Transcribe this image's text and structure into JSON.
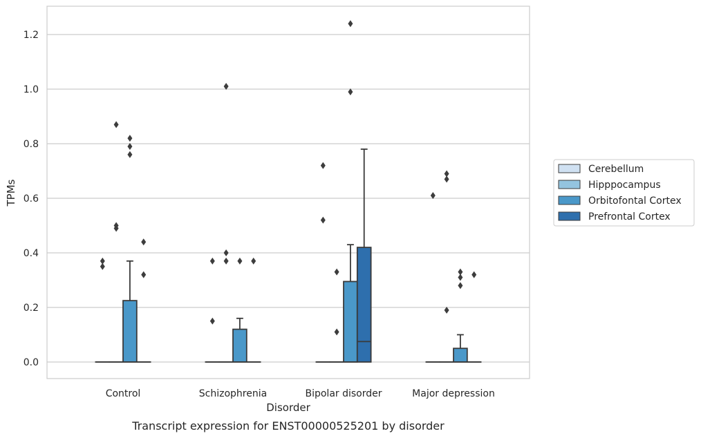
{
  "chart_data": {
    "type": "box",
    "xlabel": "Disorder",
    "ylabel": "TPMs",
    "caption": "Transcript expression for ENST00000525201 by disorder",
    "ylim": [
      -0.06,
      1.31
    ],
    "yticks": [
      "0.0",
      "0.2",
      "0.4",
      "0.6",
      "0.8",
      "1.0",
      "1.2"
    ],
    "ytick_values": [
      0.0,
      0.2,
      0.4,
      0.6,
      0.8,
      1.0,
      1.2
    ],
    "grid": "horizontal",
    "legend_position": "right",
    "categories": [
      "Control",
      "Schizophrenia",
      "Bipolar disorder",
      "Major depression"
    ],
    "series": [
      {
        "name": "Cerebellum",
        "color": "#d0e1f2",
        "boxes": [
          {
            "q1": 0,
            "median": 0,
            "q3": 0,
            "whisker_low": 0,
            "whisker_high": 0,
            "outliers": [
              0.35,
              0.37
            ]
          },
          {
            "q1": 0,
            "median": 0,
            "q3": 0,
            "whisker_low": 0,
            "whisker_high": 0,
            "outliers": [
              0.15,
              0.37
            ]
          },
          {
            "q1": 0,
            "median": 0,
            "q3": 0,
            "whisker_low": 0,
            "whisker_high": 0,
            "outliers": [
              0.52,
              0.72
            ]
          },
          {
            "q1": 0,
            "median": 0,
            "q3": 0,
            "whisker_low": 0,
            "whisker_high": 0,
            "outliers": [
              0.61
            ]
          }
        ]
      },
      {
        "name": "Hipppocampus",
        "color": "#94c4df",
        "boxes": [
          {
            "q1": 0,
            "median": 0,
            "q3": 0,
            "whisker_low": 0,
            "whisker_high": 0,
            "outliers": [
              0.49,
              0.5,
              0.87
            ]
          },
          {
            "q1": 0,
            "median": 0,
            "q3": 0,
            "whisker_low": 0,
            "whisker_high": 0,
            "outliers": [
              0.37,
              0.4,
              1.01
            ]
          },
          {
            "q1": 0,
            "median": 0,
            "q3": 0,
            "whisker_low": 0,
            "whisker_high": 0,
            "outliers": [
              0.11,
              0.33
            ]
          },
          {
            "q1": 0,
            "median": 0,
            "q3": 0,
            "whisker_low": 0,
            "whisker_high": 0,
            "outliers": [
              0.19,
              0.67,
              0.69
            ]
          }
        ]
      },
      {
        "name": "Orbitofontal Cortex",
        "color": "#4a98c9",
        "boxes": [
          {
            "q1": 0,
            "median": 0,
            "q3": 0.225,
            "whisker_low": 0,
            "whisker_high": 0.37,
            "outliers": [
              0.76,
              0.79,
              0.82
            ]
          },
          {
            "q1": 0,
            "median": 0,
            "q3": 0.12,
            "whisker_low": 0,
            "whisker_high": 0.16,
            "outliers": [
              0.37
            ]
          },
          {
            "q1": 0,
            "median": 0,
            "q3": 0.295,
            "whisker_low": 0,
            "whisker_high": 0.43,
            "outliers": [
              0.99,
              1.24
            ]
          },
          {
            "q1": 0,
            "median": 0,
            "q3": 0.05,
            "whisker_low": 0,
            "whisker_high": 0.1,
            "outliers": [
              0.28,
              0.31,
              0.33
            ]
          }
        ]
      },
      {
        "name": "Prefrontal Cortex",
        "color": "#2e6fad",
        "boxes": [
          {
            "q1": 0,
            "median": 0,
            "q3": 0,
            "whisker_low": 0,
            "whisker_high": 0,
            "outliers": [
              0.32,
              0.44
            ]
          },
          {
            "q1": 0,
            "median": 0,
            "q3": 0,
            "whisker_low": 0,
            "whisker_high": 0,
            "outliers": [
              0.37
            ]
          },
          {
            "q1": 0,
            "median": 0.075,
            "q3": 0.42,
            "whisker_low": 0,
            "whisker_high": 0.78,
            "outliers": []
          },
          {
            "q1": 0,
            "median": 0,
            "q3": 0,
            "whisker_low": 0,
            "whisker_high": 0,
            "outliers": [
              0.32
            ]
          }
        ]
      }
    ]
  }
}
